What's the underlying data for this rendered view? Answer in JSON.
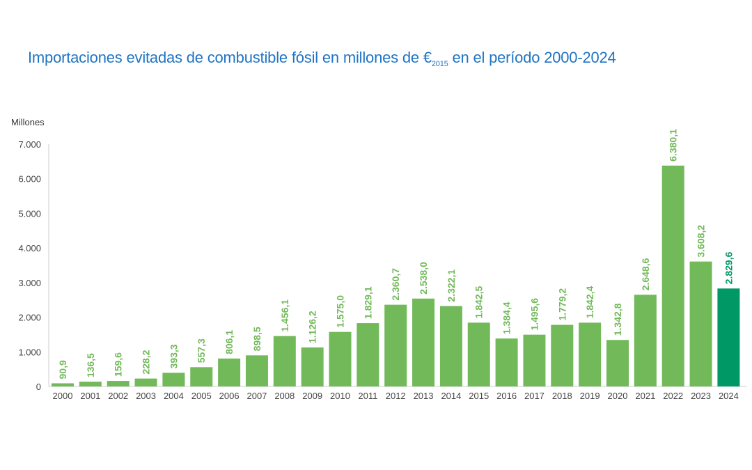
{
  "title": {
    "pre": "Importaciones evitadas de combustible fósil en millones de €",
    "sub": "2015",
    "post": " en el período 2000-2024"
  },
  "colors": {
    "bar": "#72b95a",
    "highlight": "#009966",
    "title": "#1f74c4",
    "axis_text": "#444444"
  },
  "chart_data": {
    "type": "bar",
    "ylabel": "Millones",
    "ylim": [
      0,
      7000
    ],
    "yticks": [
      0,
      1000,
      2000,
      3000,
      4000,
      5000,
      6000,
      7000
    ],
    "ytick_labels": [
      "0",
      "1.000",
      "2.000",
      "3.000",
      "4.000",
      "5.000",
      "6.000",
      "7.000"
    ],
    "categories": [
      "2000",
      "2001",
      "2002",
      "2003",
      "2004",
      "2005",
      "2006",
      "2007",
      "2008",
      "2009",
      "2010",
      "2011",
      "2012",
      "2013",
      "2014",
      "2015",
      "2016",
      "2017",
      "2018",
      "2019",
      "2020",
      "2021",
      "2022",
      "2023",
      "2024"
    ],
    "values": [
      90.9,
      136.5,
      159.6,
      228.2,
      393.3,
      557.3,
      806.1,
      898.5,
      1456.1,
      1126.2,
      1575.0,
      1829.1,
      2360.7,
      2538.0,
      2322.1,
      1842.5,
      1384.4,
      1495.6,
      1779.2,
      1842.4,
      1342.8,
      2648.6,
      6380.1,
      3608.2,
      2829.6
    ],
    "labels": [
      "90,9",
      "136,5",
      "159,6",
      "228,2",
      "393,3",
      "557,3",
      "806,1",
      "898,5",
      "1.456,1",
      "1.126,2",
      "1.575,0",
      "1.829,1",
      "2.360,7",
      "2.538,0",
      "2.322,1",
      "1.842,5",
      "1.384,4",
      "1.495,6",
      "1.779,2",
      "1.842,4",
      "1.342,8",
      "2.648,6",
      "6.380,1",
      "3.608,2",
      "2.829,6"
    ],
    "highlight_index": 24
  }
}
